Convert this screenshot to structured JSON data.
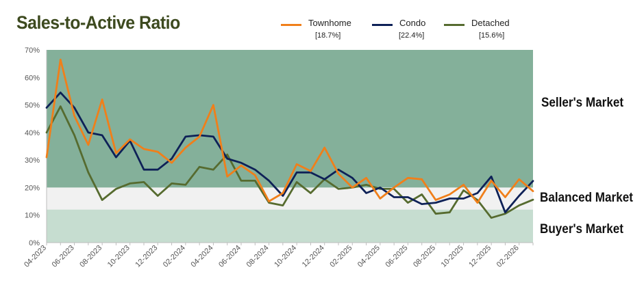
{
  "chart_data": {
    "type": "line",
    "title": "Sales-to-Active Ratio",
    "xlabel": "",
    "ylabel": "",
    "ylim": [
      0,
      70
    ],
    "y_ticks": [
      "0%",
      "10%",
      "20%",
      "30%",
      "40%",
      "50%",
      "60%",
      "70%"
    ],
    "x_tick_labels": [
      "04-2023",
      "06-2023",
      "08-2023",
      "10-2023",
      "12-2023",
      "02-2024",
      "04-2024",
      "06-2024",
      "08-2024",
      "10-2024",
      "12-2024",
      "02-2025",
      "04-2025",
      "06-2025",
      "08-2025",
      "10-2025",
      "12-2025",
      "02-2026"
    ],
    "x": [
      "04-2023",
      "05-2023",
      "06-2023",
      "07-2023",
      "08-2023",
      "09-2023",
      "10-2023",
      "11-2023",
      "12-2023",
      "01-2024",
      "02-2024",
      "03-2024",
      "04-2024",
      "05-2024",
      "06-2024",
      "07-2024",
      "08-2024",
      "09-2024",
      "10-2024",
      "11-2024",
      "12-2024",
      "01-2025",
      "02-2025",
      "03-2025",
      "04-2025",
      "05-2025",
      "06-2025",
      "07-2025",
      "08-2025",
      "09-2025",
      "10-2025",
      "11-2025",
      "12-2025",
      "01-2026",
      "02-2026",
      "03-2026"
    ],
    "zones": [
      {
        "name": "Seller's Market",
        "from": 20,
        "to": 70,
        "color": "#84b09a"
      },
      {
        "name": "Balanced Market",
        "from": 12,
        "to": 20,
        "color": "#f1f1f1"
      },
      {
        "name": "Buyer's Market",
        "from": 0,
        "to": 12,
        "color": "#c6ddd0"
      }
    ],
    "series": [
      {
        "name": "Townhome",
        "legend_value": "[18.7%]",
        "color": "#f07f1a",
        "values": [
          31,
          66.5,
          46,
          35.5,
          52,
          32.5,
          37.5,
          34,
          33,
          29,
          34.5,
          38.5,
          50,
          24,
          28,
          24.5,
          15,
          18,
          28.5,
          26,
          34.5,
          25,
          20,
          23.5,
          16,
          20,
          23.5,
          23,
          15.5,
          17.5,
          21,
          14.5,
          22.5,
          16.5,
          23,
          18.7
        ]
      },
      {
        "name": "Condo",
        "legend_value": "[22.4%]",
        "color": "#0e2157",
        "values": [
          49,
          54.5,
          49,
          40,
          39,
          31,
          37,
          26.5,
          26.5,
          30.5,
          38.5,
          39,
          38.5,
          30.5,
          29,
          26.5,
          22.5,
          17,
          25.5,
          25.5,
          23,
          26.5,
          23.5,
          18,
          20,
          16.5,
          16.5,
          14,
          14.5,
          16,
          16,
          18,
          24,
          11,
          17,
          22.4
        ]
      },
      {
        "name": "Detached",
        "legend_value": "[15.6%]",
        "color": "#566b2f",
        "values": [
          40,
          49.5,
          39,
          25.5,
          15.5,
          19.5,
          21.5,
          22,
          17,
          21.5,
          21,
          27.5,
          26.5,
          32,
          22.5,
          22.5,
          14.5,
          13.5,
          22,
          18,
          23,
          19.5,
          20,
          21,
          19.5,
          19.5,
          14.5,
          17.5,
          10.5,
          11,
          19,
          15.5,
          9,
          10.5,
          13.5,
          15.6
        ]
      }
    ]
  }
}
